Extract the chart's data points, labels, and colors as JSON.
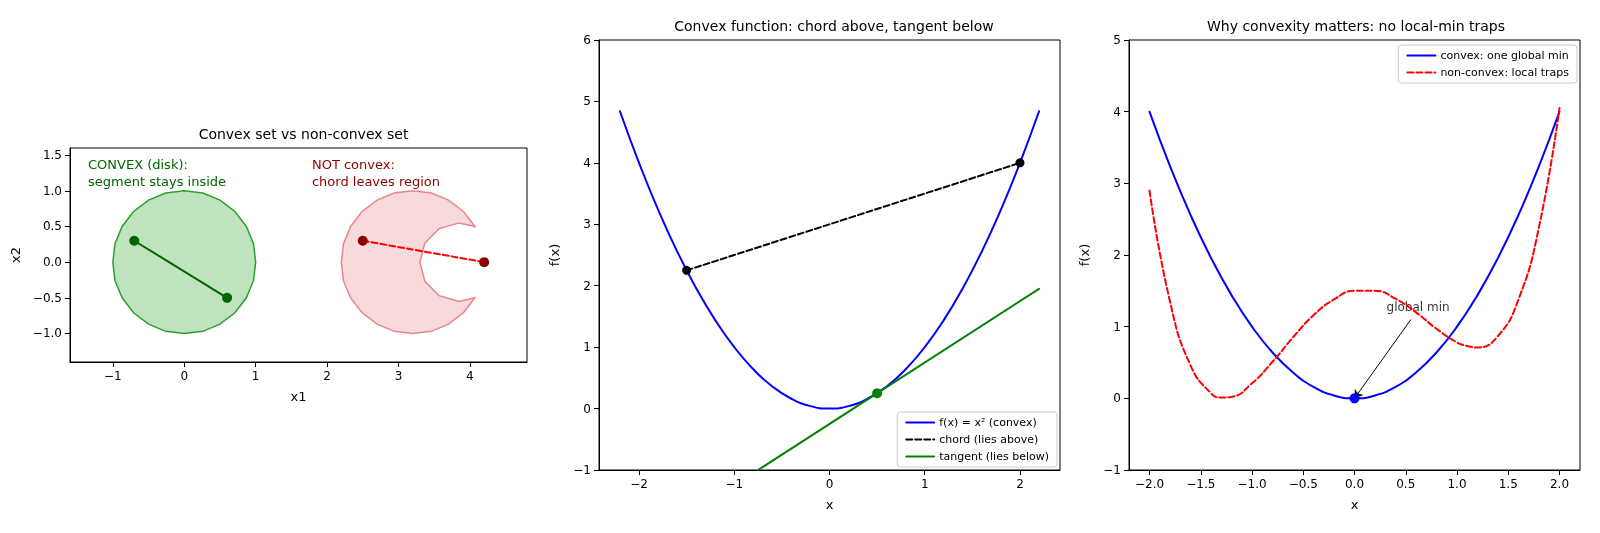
{
  "chart_data": [
    {
      "type": "line",
      "title": "Convex set vs non-convex set",
      "xlabel": "x1",
      "ylabel": "x2",
      "xlim": [
        -1.6,
        4.8
      ],
      "ylim": [
        -1.4,
        1.6
      ],
      "xticks": [
        {
          "value": -1,
          "label": "−1"
        },
        0,
        1,
        2,
        3,
        4
      ],
      "yticks": [
        {
          "value": -1,
          "label": "−1.0"
        },
        {
          "value": -0.5,
          "label": "−0.5"
        },
        {
          "value": 0,
          "label": "0.0"
        },
        {
          "value": 0.5,
          "label": "0.5"
        },
        {
          "value": 1,
          "label": "1.0"
        },
        {
          "value": 1.5,
          "label": "1.5"
        }
      ],
      "legend": false,
      "annotations": [
        "CONVEX (disk):\nsegment stays inside",
        "NOT convex:\nchord leaves region"
      ],
      "series": [
        {
          "type": "area",
          "color": "#2ca02c",
          "x": [
            1,
            0.97,
            0.87,
            0.71,
            0.5,
            0.26,
            0,
            -0.26,
            -0.5,
            -0.71,
            -0.87,
            -0.97,
            -1,
            -0.97,
            -0.87,
            -0.71,
            -0.5,
            -0.26,
            0,
            0.26,
            0.5,
            0.71,
            0.87,
            0.97
          ],
          "values": [
            0,
            0.26,
            0.5,
            0.71,
            0.87,
            0.97,
            1,
            0.97,
            0.87,
            0.71,
            0.5,
            0.26,
            0,
            -0.26,
            -0.5,
            -0.71,
            -0.87,
            -0.97,
            -1,
            -0.97,
            -0.87,
            -0.71,
            -0.5,
            -0.26
          ]
        },
        {
          "type": "area",
          "color": "#e8868a",
          "x": [
            4.07,
            3.91,
            3.7,
            3.46,
            3.2,
            2.94,
            2.7,
            2.49,
            2.33,
            2.23,
            2.2,
            2.23,
            2.33,
            2.49,
            2.7,
            2.94,
            3.2,
            3.46,
            3.7,
            3.91,
            4.07,
            3.85,
            3.57,
            3.37,
            3.3,
            3.37,
            3.57,
            3.85
          ],
          "values": [
            0.5,
            0.71,
            0.87,
            0.97,
            1,
            0.97,
            0.87,
            0.71,
            0.5,
            0.26,
            0,
            -0.26,
            -0.5,
            -0.71,
            -0.87,
            -0.97,
            -1,
            -0.97,
            -0.87,
            -0.71,
            -0.5,
            -0.55,
            -0.47,
            -0.27,
            0,
            0.27,
            0.47,
            0.55
          ]
        },
        {
          "color": "#006400",
          "line_style": "solid",
          "marker": "none",
          "x": [
            -0.7,
            0.6
          ],
          "values": [
            0.3,
            -0.5
          ]
        },
        {
          "color": "#ff0000",
          "line_style": "dashed",
          "marker": "none",
          "x": [
            2.5,
            4.2
          ],
          "values": [
            0.3,
            0
          ]
        },
        {
          "type": "scatter",
          "color": "#006400",
          "marker": "circle",
          "x": [
            -0.7,
            0.6
          ],
          "values": [
            0.3,
            -0.5
          ]
        },
        {
          "type": "scatter",
          "color": "#8b0000",
          "marker": "circle",
          "x": [
            2.5,
            4.2
          ],
          "values": [
            0.3,
            0
          ]
        }
      ]
    },
    {
      "type": "line",
      "title": "Convex function: chord above, tangent below",
      "xlabel": "x",
      "ylabel": "f(x)",
      "xlim": [
        -2.42,
        2.42
      ],
      "ylim": [
        -1,
        6
      ],
      "xticks": [
        {
          "value": -2,
          "label": "−2"
        },
        {
          "value": -1,
          "label": "−1"
        },
        0,
        1,
        2
      ],
      "yticks": [
        {
          "value": -1,
          "label": "−1"
        },
        0,
        1,
        2,
        3,
        4,
        5,
        6
      ],
      "marker": "none",
      "legend": "bottom right",
      "series": [
        {
          "name": "f(x) = x² (convex)",
          "color": "#0000ff",
          "line_style": "solid",
          "x": [
            -2.2,
            -2,
            -1.8,
            -1.6,
            -1.4,
            -1.2,
            -1,
            -0.8,
            -0.6,
            -0.4,
            -0.2,
            0,
            0.2,
            0.4,
            0.6,
            0.8,
            1,
            1.2,
            1.4,
            1.6,
            1.8,
            2,
            2.2
          ],
          "values": [
            4.84,
            4,
            3.24,
            2.56,
            1.96,
            1.44,
            1,
            0.64,
            0.36,
            0.16,
            0.04,
            0,
            0.04,
            0.16,
            0.36,
            0.64,
            1,
            1.44,
            1.96,
            2.56,
            3.24,
            4,
            4.84
          ]
        },
        {
          "name": "chord (lies above)",
          "color": "#000000",
          "line_style": "dashed",
          "marker": "circle",
          "x": [
            -1.5,
            2
          ],
          "values": [
            2.25,
            4
          ]
        },
        {
          "name": "tangent (lies below)",
          "color": "#008000",
          "line_style": "solid",
          "x": [
            -0.75,
            2.2
          ],
          "values": [
            -1,
            1.95
          ]
        },
        {
          "type": "scatter",
          "color": "#008000",
          "marker": "circle",
          "x": [
            0.5
          ],
          "values": [
            0.25
          ]
        }
      ]
    },
    {
      "type": "line",
      "title": "Why convexity matters: no local-min traps",
      "xlabel": "x",
      "ylabel": "f(x)",
      "xlim": [
        -2.2,
        2.2
      ],
      "ylim": [
        -1,
        5
      ],
      "xticks": [
        {
          "value": -2,
          "label": "−2.0"
        },
        {
          "value": -1.5,
          "label": "−1.5"
        },
        {
          "value": -1,
          "label": "−1.0"
        },
        {
          "value": -0.5,
          "label": "−0.5"
        },
        {
          "value": 0,
          "label": "0.0"
        },
        {
          "value": 0.5,
          "label": "0.5"
        },
        {
          "value": 1,
          "label": "1.0"
        },
        {
          "value": 1.5,
          "label": "1.5"
        },
        {
          "value": 2,
          "label": "2.0"
        }
      ],
      "yticks": [
        {
          "value": -1,
          "label": "−1"
        },
        0,
        1,
        2,
        3,
        4,
        5
      ],
      "marker": "none",
      "legend": "top right",
      "annotations": [
        {
          "text": "global min",
          "x": 0,
          "y": 0
        }
      ],
      "series": [
        {
          "name": "convex: one global min",
          "color": "#0000ff",
          "line_style": "solid",
          "x": [
            -2,
            -1.8,
            -1.6,
            -1.4,
            -1.2,
            -1,
            -0.8,
            -0.6,
            -0.4,
            -0.2,
            0,
            0.2,
            0.4,
            0.6,
            0.8,
            1,
            1.2,
            1.4,
            1.6,
            1.8,
            2
          ],
          "values": [
            4,
            3.24,
            2.56,
            1.96,
            1.44,
            1,
            0.64,
            0.36,
            0.16,
            0.04,
            0,
            0.04,
            0.16,
            0.36,
            0.64,
            1,
            1.44,
            1.96,
            2.56,
            3.24,
            4
          ]
        },
        {
          "name": "non-convex: local traps",
          "color": "#ff0000",
          "line_style": "dashed",
          "x": [
            -2,
            -1.8,
            -1.6,
            -1.4,
            -1.3,
            -1.2,
            -1,
            -0.8,
            -0.6,
            -0.4,
            -0.2,
            0,
            0.2,
            0.4,
            0.6,
            0.8,
            1,
            1.1,
            1.2,
            1.4,
            1.6,
            1.8,
            2
          ],
          "values": [
            2.9,
            1.35,
            0.46,
            0.07,
            0.01,
            0.02,
            0.21,
            0.51,
            0.85,
            1.16,
            1.38,
            1.5,
            1.5,
            1.39,
            1.2,
            0.97,
            0.78,
            0.73,
            0.71,
            0.87,
            1.38,
            2.39,
            4.05
          ]
        },
        {
          "type": "scatter",
          "color": "#0000ff",
          "marker": "circle",
          "x": [
            0
          ],
          "values": [
            0
          ]
        }
      ]
    }
  ]
}
